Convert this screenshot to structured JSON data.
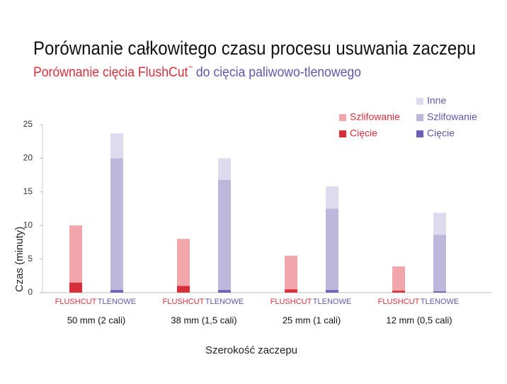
{
  "chart_data": {
    "type": "stacked-bar",
    "title": "Porównanie całkowitego czasu procesu usuwania zaczepu",
    "subtitle_parts": [
      "Porównanie cięcia FlushCut",
      "™",
      " do cięcia paliwowo-tlenowego"
    ],
    "subtitle_colors": [
      "#d6303a",
      "#d6303a",
      "#5d58aa"
    ],
    "categories": [
      "50 mm (2 cali)",
      "38 mm (1,5 cali)",
      "25 mm (1 cali)",
      "12 mm (0,5 cali)"
    ],
    "stack_labels": [
      "FLUSHCUT",
      "TLENOWE"
    ],
    "stack_colors": [
      "#d6303a",
      "#5d58aa"
    ],
    "series": [
      {
        "name": "Cięcie",
        "stack": 0,
        "color": "#d8303a",
        "values": [
          1.5,
          1.0,
          0.5,
          0.3
        ]
      },
      {
        "name": "Szlifowanie",
        "stack": 0,
        "color": "#f1a7aa",
        "values": [
          8.5,
          7.0,
          5.0,
          3.6
        ]
      },
      {
        "name": "Cięcie",
        "stack": 1,
        "color": "#6a60b4",
        "values": [
          0.4,
          0.4,
          0.4,
          0.2
        ]
      },
      {
        "name": "Szlifowanie",
        "stack": 1,
        "color": "#bdb7dc",
        "values": [
          19.6,
          16.4,
          12.1,
          8.4
        ]
      },
      {
        "name": "Inne",
        "stack": 1,
        "color": "#dddbed",
        "values": [
          3.7,
          3.2,
          3.3,
          3.3
        ]
      }
    ],
    "x_label": "Szerokość zaczepu",
    "y_label": "Czas (minuty)",
    "ylim": [
      0,
      25
    ],
    "yticks": [
      0,
      5,
      10,
      15,
      20,
      25
    ]
  }
}
